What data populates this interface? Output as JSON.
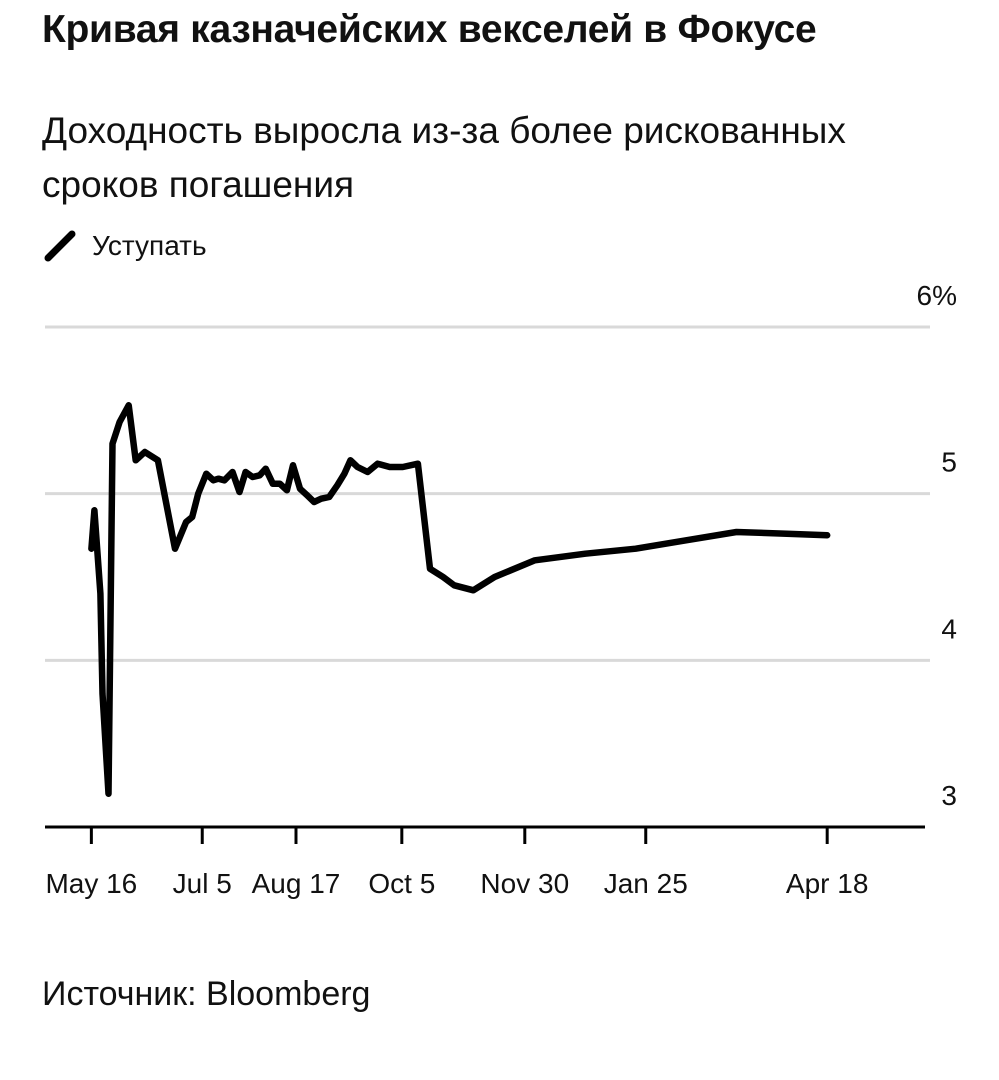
{
  "title": "Кривая казначейских векселей в Фокусе",
  "subtitle": "Доходность выросла из-за более рискованных сроков погашения",
  "source": "Источник: Bloomberg",
  "colors": {
    "line": "#000000",
    "grid": "#d9d9d9",
    "axis": "#000000",
    "text": "#111111"
  },
  "chart_data": {
    "type": "line",
    "legend": {
      "position": "top-left",
      "entries": [
        "Уступать"
      ]
    },
    "series": [
      {
        "name": "Уступать",
        "x": [
          0,
          0.3,
          0.9,
          1.1,
          1.7,
          2.1,
          2.8,
          3.7,
          4.4,
          5.3,
          6.6,
          8.3,
          9.4,
          10.0,
          10.6,
          11.4,
          12.1,
          12.6,
          13.2,
          14.0,
          14.7,
          15.3,
          16.0,
          16.7,
          17.3,
          18.0,
          18.7,
          19.4,
          20.0,
          20.7,
          21.4,
          22.1,
          22.8,
          23.6,
          24.4,
          25.1,
          25.7,
          26.4,
          27.4,
          28.4,
          29.6,
          30.9,
          32.4,
          33.6,
          34.9,
          36.0,
          37.9,
          40.0,
          44.0,
          49.0,
          54.0,
          59.0,
          64.0,
          69.0,
          73.0
        ],
        "values": [
          4.67,
          4.9,
          4.4,
          3.8,
          3.2,
          5.3,
          5.43,
          5.53,
          5.2,
          5.25,
          5.2,
          4.67,
          4.83,
          4.86,
          5.0,
          5.12,
          5.08,
          5.09,
          5.08,
          5.13,
          5.01,
          5.13,
          5.1,
          5.11,
          5.15,
          5.06,
          5.06,
          5.02,
          5.17,
          5.03,
          4.99,
          4.95,
          4.97,
          4.98,
          5.05,
          5.12,
          5.2,
          5.16,
          5.13,
          5.18,
          5.16,
          5.16,
          5.18,
          4.55,
          4.5,
          4.45,
          4.42,
          4.5,
          4.6,
          4.64,
          4.67,
          4.72,
          4.77,
          4.76,
          4.75
        ]
      }
    ],
    "x_ticks": [
      {
        "label": "May 16",
        "x": 0
      },
      {
        "label": "Jul 5",
        "x": 11
      },
      {
        "label": "Aug 17",
        "x": 20.3
      },
      {
        "label": "Oct 5",
        "x": 30.8
      },
      {
        "label": "Nov 30",
        "x": 43
      },
      {
        "label": "Jan 25",
        "x": 55
      },
      {
        "label": "Apr 18",
        "x": 73
      }
    ],
    "xlim": [
      -4.6,
      83.2
    ],
    "y_ticks": [
      {
        "value": 3,
        "label": "3"
      },
      {
        "value": 4,
        "label": "4"
      },
      {
        "value": 5,
        "label": "5"
      },
      {
        "value": 6,
        "label": "6%"
      }
    ],
    "ylim": [
      3,
      6
    ],
    "grid": true,
    "xlabel": "",
    "ylabel": ""
  }
}
